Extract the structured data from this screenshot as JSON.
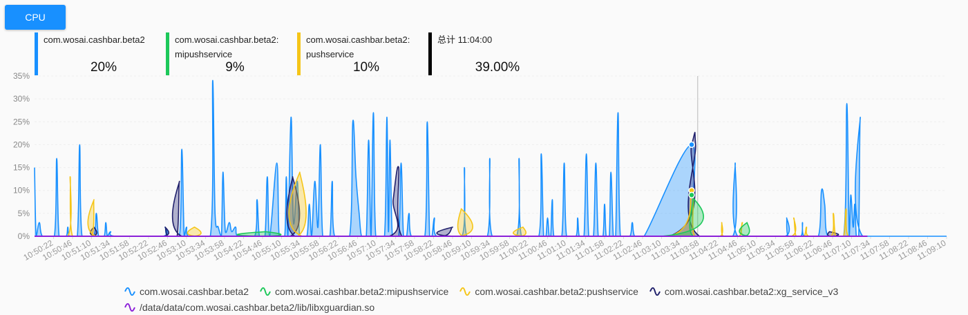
{
  "button": {
    "label": "CPU"
  },
  "stats": [
    {
      "name_line1": "com.wosai.cashbar.beta2",
      "name_line2": "",
      "value": "20%",
      "color": "#1890ff"
    },
    {
      "name_line1": "com.wosai.cashbar.beta2:",
      "name_line2": "mipushservice",
      "value": "9%",
      "color": "#1dc85a"
    },
    {
      "name_line1": "com.wosai.cashbar.beta2:",
      "name_line2": "pushservice",
      "value": "10%",
      "color": "#f5c518"
    },
    {
      "name_line1": "总计 11:04:00",
      "name_line2": "",
      "value": "39.00%",
      "color": "#000000"
    }
  ],
  "chart_data": {
    "type": "area",
    "y_unit": "%",
    "ylim": [
      0,
      35
    ],
    "yticks": [
      "0%",
      "5%",
      "10%",
      "15%",
      "20%",
      "25%",
      "30%",
      "35%"
    ],
    "xlim": [
      "10:49:58",
      "11:09:10"
    ],
    "x_tick_labels": [
      "10:50:22",
      "10:50:46",
      "10:51:10",
      "10:51:34",
      "10:51:58",
      "10:52:22",
      "10:52:46",
      "10:53:10",
      "10:53:34",
      "10:53:58",
      "10:54:22",
      "10:54:46",
      "10:55:10",
      "10:55:34",
      "10:55:58",
      "10:56:22",
      "10:56:46",
      "10:57:10",
      "10:57:34",
      "10:57:58",
      "10:58:22",
      "10:58:46",
      "10:59:10",
      "10:59:34",
      "10:59:58",
      "11:00:22",
      "11:00:46",
      "11:01:10",
      "11:01:34",
      "11:01:58",
      "11:02:22",
      "11:02:46",
      "11:03:10",
      "11:03:34",
      "11:03:58",
      "11:04:22",
      "11:04:46",
      "11:05:10",
      "11:05:34",
      "11:05:58",
      "11:06:22",
      "11:06:46",
      "11:07:10",
      "11:07:34",
      "11:07:58",
      "11:08:22",
      "11:08:46",
      "11:09:10"
    ],
    "grid": true,
    "legend_position": "bottom",
    "crosshair_time": "11:04:00",
    "series": [
      {
        "name": "com.wosai.cashbar.beta2",
        "color": "#1890ff",
        "fill": "rgba(24,144,255,0.35)",
        "points": [
          [
            "10:49:58",
            15
          ],
          [
            "10:50:00",
            0
          ],
          [
            "10:50:04",
            3
          ],
          [
            "10:50:08",
            0
          ],
          [
            "10:50:23",
            0
          ],
          [
            "10:50:26",
            17
          ],
          [
            "10:50:29",
            0
          ],
          [
            "10:50:38",
            0
          ],
          [
            "10:50:40",
            2
          ],
          [
            "10:50:42",
            0
          ],
          [
            "10:50:52",
            0
          ],
          [
            "10:50:55",
            20
          ],
          [
            "10:50:58",
            0
          ],
          [
            "10:51:13",
            0
          ],
          [
            "10:51:16",
            5
          ],
          [
            "10:51:19",
            0
          ],
          [
            "10:51:26",
            0
          ],
          [
            "10:51:28",
            3
          ],
          [
            "10:51:30",
            0
          ],
          [
            "10:51:34",
            1
          ],
          [
            "10:51:40",
            0
          ],
          [
            "10:52:40",
            0
          ],
          [
            "10:52:43",
            2
          ],
          [
            "10:52:46",
            0
          ],
          [
            "10:53:01",
            0
          ],
          [
            "10:53:04",
            19
          ],
          [
            "10:53:07",
            0
          ],
          [
            "10:53:10",
            2
          ],
          [
            "10:53:13",
            0
          ],
          [
            "10:53:40",
            0
          ],
          [
            "10:53:43",
            34
          ],
          [
            "10:53:46",
            5
          ],
          [
            "10:53:50",
            2
          ],
          [
            "10:53:54",
            0
          ],
          [
            "10:53:56",
            14
          ],
          [
            "10:53:59",
            1
          ],
          [
            "10:54:04",
            3
          ],
          [
            "10:54:07",
            1
          ],
          [
            "10:54:12",
            2
          ],
          [
            "10:54:15",
            0
          ],
          [
            "10:54:36",
            0
          ],
          [
            "10:54:39",
            8
          ],
          [
            "10:54:42",
            0
          ],
          [
            "10:54:49",
            0
          ],
          [
            "10:54:52",
            13
          ],
          [
            "10:54:55",
            0
          ],
          [
            "10:55:04",
            16
          ],
          [
            "10:55:07",
            0
          ],
          [
            "10:55:14",
            0
          ],
          [
            "10:55:16",
            13
          ],
          [
            "10:55:18",
            0
          ],
          [
            "10:55:22",
            26
          ],
          [
            "10:55:25",
            3
          ],
          [
            "10:55:30",
            12
          ],
          [
            "10:55:33",
            0
          ],
          [
            "10:55:42",
            0
          ],
          [
            "10:55:45",
            7
          ],
          [
            "10:55:48",
            0
          ],
          [
            "10:55:52",
            12
          ],
          [
            "10:55:56",
            2
          ],
          [
            "10:55:59",
            20
          ],
          [
            "10:56:02",
            0
          ],
          [
            "10:56:11",
            0
          ],
          [
            "10:56:14",
            12
          ],
          [
            "10:56:17",
            0
          ],
          [
            "10:56:36",
            0
          ],
          [
            "10:56:40",
            25
          ],
          [
            "10:56:44",
            13
          ],
          [
            "10:56:48",
            5
          ],
          [
            "10:56:51",
            0
          ],
          [
            "10:56:57",
            0
          ],
          [
            "10:57:00",
            21
          ],
          [
            "10:57:03",
            0
          ],
          [
            "10:57:06",
            27
          ],
          [
            "10:57:09",
            0
          ],
          [
            "10:57:20",
            0
          ],
          [
            "10:57:23",
            26
          ],
          [
            "10:57:25",
            1
          ],
          [
            "10:57:27",
            21
          ],
          [
            "10:57:30",
            0
          ],
          [
            "10:57:38",
            0
          ],
          [
            "10:57:41",
            16
          ],
          [
            "10:57:44",
            0
          ],
          [
            "10:57:48",
            0
          ],
          [
            "10:57:51",
            5
          ],
          [
            "10:57:54",
            0
          ],
          [
            "10:58:11",
            0
          ],
          [
            "10:58:14",
            25
          ],
          [
            "10:58:17",
            0
          ],
          [
            "10:58:20",
            0
          ],
          [
            "10:58:23",
            4
          ],
          [
            "10:58:26",
            0
          ],
          [
            "10:58:58",
            0
          ],
          [
            "10:59:01",
            15
          ],
          [
            "10:59:04",
            0
          ],
          [
            "10:59:30",
            0
          ],
          [
            "10:59:33",
            17
          ],
          [
            "10:59:36",
            0
          ],
          [
            "11:00:07",
            0
          ],
          [
            "11:00:10",
            17
          ],
          [
            "11:00:13",
            0
          ],
          [
            "11:00:35",
            0
          ],
          [
            "11:00:38",
            18
          ],
          [
            "11:00:41",
            0
          ],
          [
            "11:00:44",
            0
          ],
          [
            "11:00:46",
            4
          ],
          [
            "11:00:48",
            0
          ],
          [
            "11:00:50",
            0
          ],
          [
            "11:00:52",
            8
          ],
          [
            "11:00:54",
            0
          ],
          [
            "11:01:04",
            0
          ],
          [
            "11:01:07",
            16
          ],
          [
            "11:01:10",
            0
          ],
          [
            "11:01:22",
            0
          ],
          [
            "11:01:24",
            4
          ],
          [
            "11:01:26",
            0
          ],
          [
            "11:01:32",
            0
          ],
          [
            "11:01:35",
            18
          ],
          [
            "11:01:38",
            0
          ],
          [
            "11:01:44",
            0
          ],
          [
            "11:01:47",
            16
          ],
          [
            "11:01:50",
            0
          ],
          [
            "11:01:56",
            0
          ],
          [
            "11:01:58",
            7
          ],
          [
            "11:02:00",
            0
          ],
          [
            "11:02:04",
            0
          ],
          [
            "11:02:06",
            14
          ],
          [
            "11:02:09",
            0
          ],
          [
            "11:02:12",
            0
          ],
          [
            "11:02:15",
            27
          ],
          [
            "11:02:18",
            0
          ],
          [
            "11:02:30",
            0
          ],
          [
            "11:02:33",
            3
          ],
          [
            "11:02:36",
            0
          ],
          [
            "11:02:48",
            0
          ],
          [
            "11:03:48",
            20
          ],
          [
            "11:03:52",
            0
          ],
          [
            "11:04:40",
            0
          ],
          [
            "11:04:43",
            16
          ],
          [
            "11:04:46",
            0
          ],
          [
            "11:05:46",
            0
          ],
          [
            "11:05:48",
            4
          ],
          [
            "11:05:50",
            0
          ],
          [
            "11:06:06",
            0
          ],
          [
            "11:06:08",
            3
          ],
          [
            "11:06:10",
            0
          ],
          [
            "11:06:28",
            0
          ],
          [
            "11:06:32",
            10
          ],
          [
            "11:06:36",
            7
          ],
          [
            "11:06:40",
            0
          ],
          [
            "11:07:00",
            0
          ],
          [
            "11:07:04",
            29
          ],
          [
            "11:07:07",
            0
          ],
          [
            "11:07:09",
            9
          ],
          [
            "11:07:12",
            2
          ],
          [
            "11:07:14",
            7
          ],
          [
            "11:07:16",
            0
          ],
          [
            "11:07:19",
            0
          ],
          [
            "11:07:21",
            26
          ],
          [
            "11:07:24",
            0
          ],
          [
            "11:09:10",
            0
          ]
        ]
      },
      {
        "name": "com.wosai.cashbar.beta2:mipushservice",
        "color": "#1dc85a",
        "fill": "rgba(29,200,90,0.35)",
        "points": [
          [
            "10:49:58",
            0
          ],
          [
            "10:54:45",
            0
          ],
          [
            "10:54:50",
            1
          ],
          [
            "10:54:55",
            0
          ],
          [
            "11:03:10",
            0
          ],
          [
            "11:03:48",
            9
          ],
          [
            "11:03:50",
            0
          ],
          [
            "11:04:55",
            0
          ],
          [
            "11:04:58",
            3
          ],
          [
            "11:05:01",
            0
          ],
          [
            "11:07:30",
            0
          ]
        ]
      },
      {
        "name": "com.wosai.cashbar.beta2:pushservice",
        "color": "#f5c518",
        "fill": "rgba(245,197,24,0.35)",
        "points": [
          [
            "10:49:58",
            0
          ],
          [
            "10:50:40",
            0
          ],
          [
            "10:50:43",
            13
          ],
          [
            "10:50:46",
            0
          ],
          [
            "10:51:10",
            0
          ],
          [
            "10:51:13",
            8
          ],
          [
            "10:51:16",
            0
          ],
          [
            "10:53:18",
            0
          ],
          [
            "10:53:20",
            2
          ],
          [
            "10:53:22",
            0
          ],
          [
            "10:55:30",
            0
          ],
          [
            "10:55:33",
            14
          ],
          [
            "10:55:36",
            0
          ],
          [
            "10:58:55",
            0
          ],
          [
            "10:58:57",
            6
          ],
          [
            "10:58:59",
            0
          ],
          [
            "11:00:12",
            0
          ],
          [
            "11:00:15",
            2
          ],
          [
            "11:00:18",
            0
          ],
          [
            "11:03:20",
            0
          ],
          [
            "11:03:48",
            10
          ],
          [
            "11:03:52",
            0
          ],
          [
            "11:04:24",
            0
          ],
          [
            "11:04:26",
            3
          ],
          [
            "11:04:28",
            0
          ],
          [
            "11:04:48",
            0
          ],
          [
            "11:04:52",
            3
          ],
          [
            "11:04:56",
            0
          ],
          [
            "11:05:54",
            0
          ],
          [
            "11:05:57",
            4
          ],
          [
            "11:06:00",
            0
          ],
          [
            "11:06:10",
            0
          ],
          [
            "11:06:13",
            2
          ],
          [
            "11:06:16",
            0
          ],
          [
            "11:06:44",
            0
          ],
          [
            "11:06:47",
            5
          ],
          [
            "11:06:50",
            0
          ],
          [
            "11:07:00",
            0
          ],
          [
            "11:07:03",
            6
          ],
          [
            "11:07:06",
            0
          ],
          [
            "11:07:30",
            0
          ]
        ]
      },
      {
        "name": "com.wosai.cashbar.beta2:xg_service_v3",
        "color": "#1f1f6b",
        "fill": "rgba(40,40,120,0.35)",
        "points": [
          [
            "10:49:58",
            0
          ],
          [
            "10:51:10",
            0
          ],
          [
            "10:51:13",
            2
          ],
          [
            "10:51:16",
            0
          ],
          [
            "10:52:40",
            0
          ],
          [
            "10:52:43",
            2
          ],
          [
            "10:52:46",
            0
          ],
          [
            "10:52:58",
            0
          ],
          [
            "10:53:01",
            12
          ],
          [
            "10:53:04",
            0
          ],
          [
            "10:55:21",
            0
          ],
          [
            "10:55:24",
            13
          ],
          [
            "10:55:27",
            0
          ],
          [
            "10:57:26",
            0
          ],
          [
            "10:57:31",
            8
          ],
          [
            "10:57:38",
            15
          ],
          [
            "10:57:42",
            0
          ],
          [
            "10:58:34",
            0
          ],
          [
            "10:58:46",
            2
          ],
          [
            "10:58:48",
            0
          ],
          [
            "11:03:20",
            0
          ],
          [
            "11:03:48",
            20
          ],
          [
            "11:03:53",
            20
          ],
          [
            "11:03:58",
            0
          ],
          [
            "11:06:40",
            0
          ],
          [
            "11:06:42",
            1
          ],
          [
            "11:06:44",
            0
          ],
          [
            "11:07:30",
            0
          ]
        ]
      },
      {
        "name": "/data/data/com.wosai.cashbar.beta2/lib/libxguardian.so",
        "color": "#8b1fd8",
        "fill": "none",
        "points": [
          [
            "10:49:58",
            0
          ],
          [
            "11:07:30",
            0
          ]
        ]
      }
    ],
    "markers": [
      {
        "series": 0,
        "time": "11:03:48",
        "value": 20
      },
      {
        "series": 2,
        "time": "11:03:48",
        "value": 10
      },
      {
        "series": 1,
        "time": "11:03:48",
        "value": 9
      }
    ]
  }
}
